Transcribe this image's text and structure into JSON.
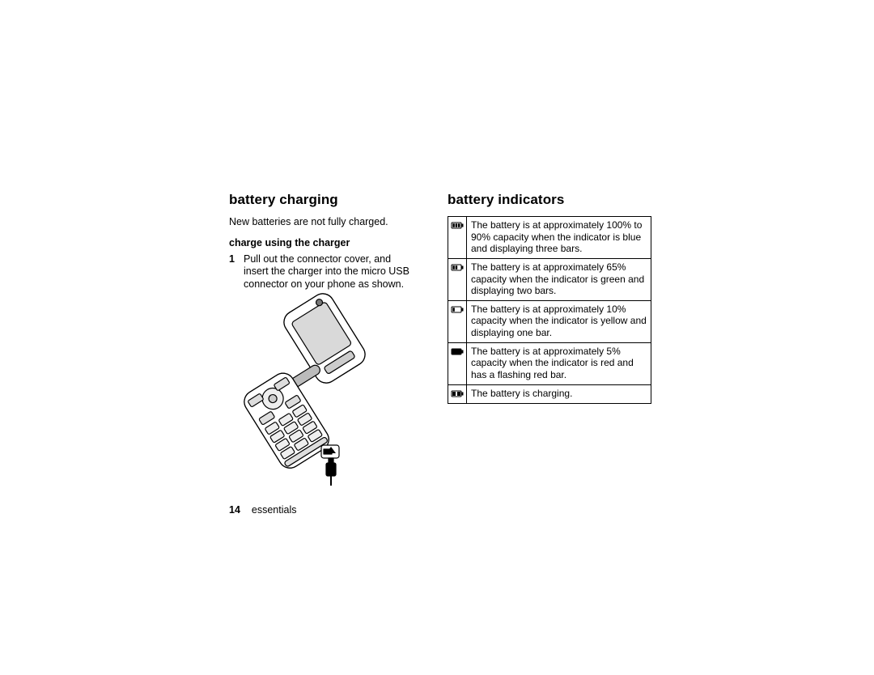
{
  "page": {
    "number": "14",
    "section_label": "essentials",
    "background_color": "#ffffff",
    "text_color": "#000000",
    "border_color": "#000000"
  },
  "left": {
    "heading": "battery charging",
    "intro": "New batteries are not fully charged.",
    "subheading": "charge using the charger",
    "step_number": "1",
    "step_text": "Pull out the connector cover, and insert the charger into the micro USB connector on your phone as shown."
  },
  "right": {
    "heading": "battery indicators"
  },
  "indicators": [
    {
      "bars": 3,
      "fill": "bars",
      "desc": "The battery is at approximately 100% to 90% capacity when the indicator is blue and displaying three bars."
    },
    {
      "bars": 2,
      "fill": "bars",
      "desc": "The battery is at approximately 65% capacity when the indicator is green and displaying two bars."
    },
    {
      "bars": 1,
      "fill": "bars",
      "desc": "The battery is at approximately 10% capacity when the indicator is yellow and displaying one bar."
    },
    {
      "bars": 0,
      "fill": "solid",
      "desc": "The battery is at approximately 5% capacity when the indicator is red and has a flashing red bar."
    },
    {
      "bars": 0,
      "fill": "charging",
      "desc": "The battery is charging."
    }
  ],
  "icons": {
    "width": 16,
    "height": 9,
    "stroke": "#000000",
    "fill": "#000000"
  }
}
